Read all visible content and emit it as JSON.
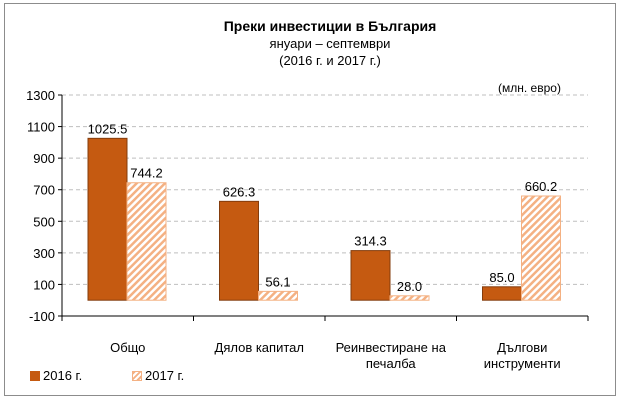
{
  "chart_data": {
    "type": "bar",
    "title": "Преки  инвестиции в България",
    "subtitle_lines": [
      "януари – септември",
      "(2016 г. и 2017 г.)"
    ],
    "unit_label": "(млн. евро)",
    "categories": [
      "Общо",
      "Дялов капитал",
      "Реинвестиране на печалба",
      "Дългови инструменти"
    ],
    "category_label_lines": [
      [
        "Общо"
      ],
      [
        "Дялов капитал"
      ],
      [
        "Реинвестиране на",
        "печалба"
      ],
      [
        "Дългови",
        "инструменти"
      ]
    ],
    "series": [
      {
        "name": "2016 г.",
        "values": [
          1025.5,
          626.3,
          314.3,
          85.0
        ],
        "labels": [
          "1025.5",
          "626.3",
          "314.3",
          "85.0"
        ],
        "color": "#c55a11",
        "pattern": "solid"
      },
      {
        "name": "2017 г.",
        "values": [
          744.2,
          56.1,
          28.0,
          660.2
        ],
        "labels": [
          "744.2",
          "56.1",
          "28.0",
          "660.2"
        ],
        "color": "#f4b183",
        "pattern": "diagonal-stripes"
      }
    ],
    "ylim": [
      -100,
      1300
    ],
    "yticks": [
      -100,
      100,
      300,
      500,
      700,
      900,
      1100,
      1300
    ],
    "ytick_labels": [
      "-100",
      "100",
      "300",
      "500",
      "700",
      "900",
      "1100",
      "1300"
    ],
    "grid": true,
    "legend_position": "bottom-left"
  }
}
